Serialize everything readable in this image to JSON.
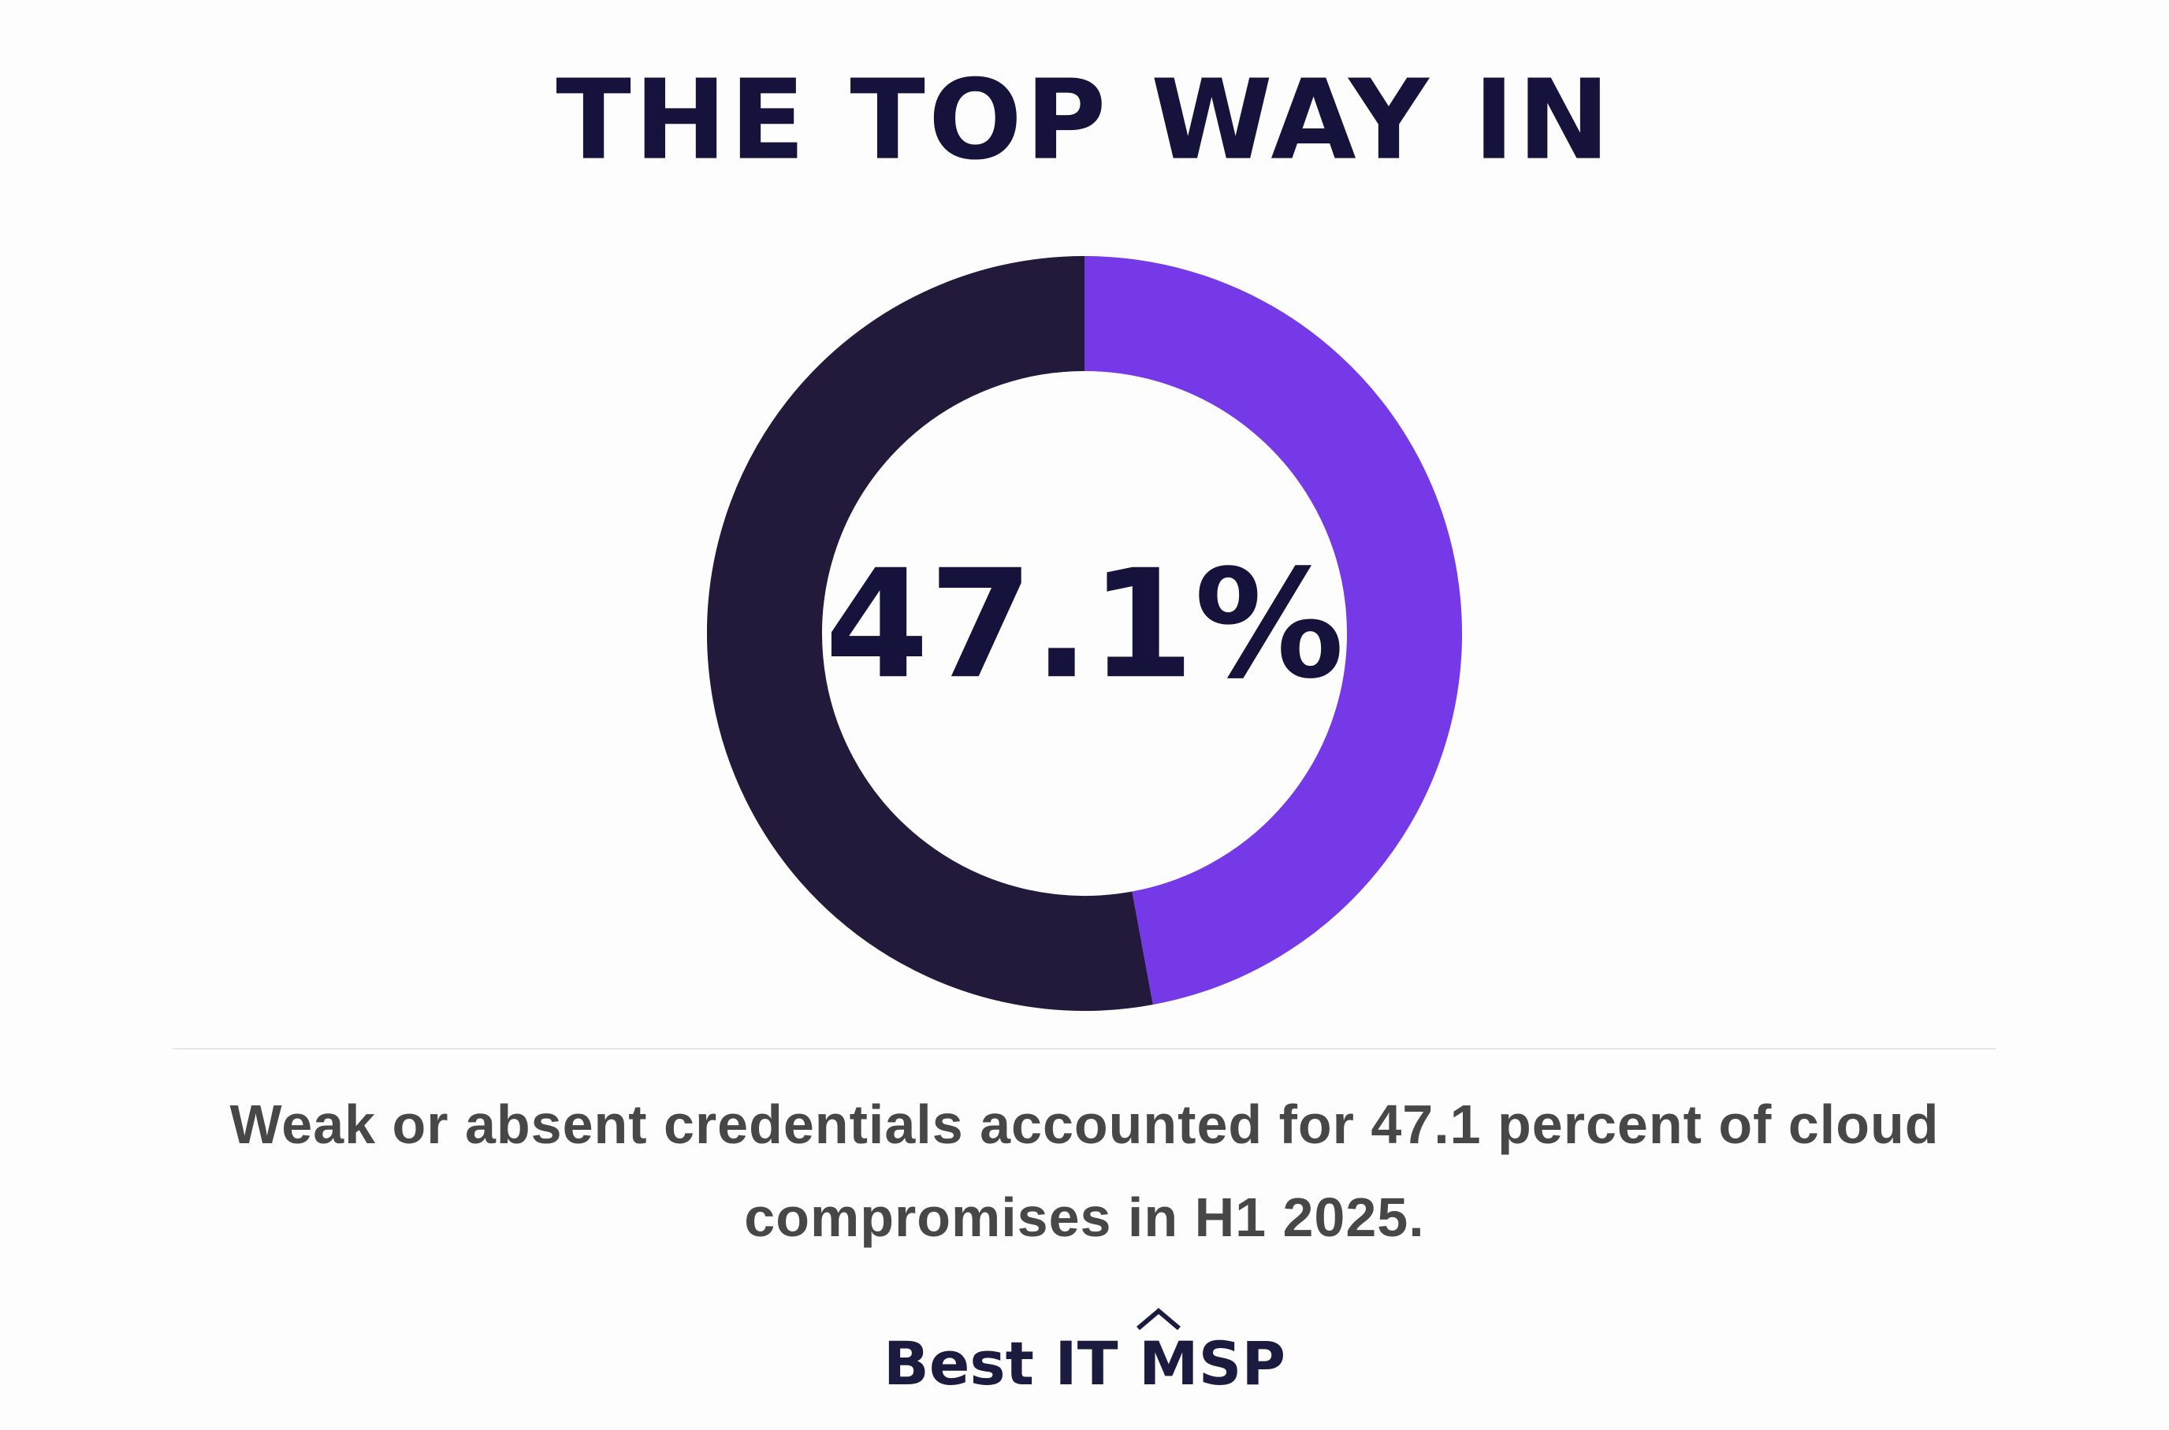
{
  "chart_data": {
    "type": "donut",
    "title": "THE TOP WAY IN",
    "values": [
      47.1,
      52.9
    ],
    "colors": [
      "#7639e8",
      "#23193a"
    ],
    "center_label": "47.1%",
    "caption": "Weak or absent credentials accounted for 47.1 percent of cloud compromises in H1 2025.",
    "footer": "Best IT MSP"
  }
}
